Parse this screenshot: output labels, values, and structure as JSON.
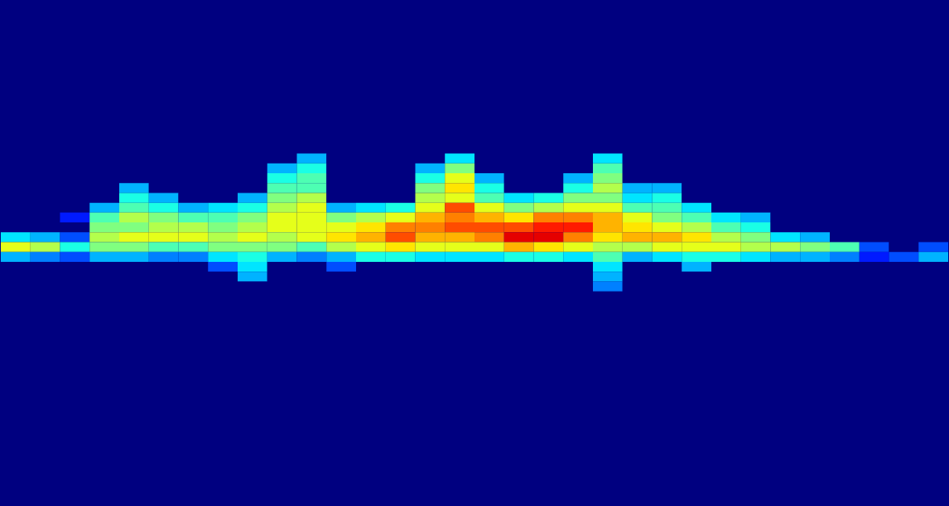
{
  "chart_data": {
    "type": "heatmap",
    "xlim": [
      0,
      10.24
    ],
    "ylim": [
      -0.1,
      10.14
    ],
    "xticks": [
      1,
      2,
      3,
      4,
      5,
      6,
      7,
      8,
      9,
      10
    ],
    "yticks": [
      1,
      2,
      3,
      4,
      5,
      6,
      7,
      8,
      9
    ],
    "tick_labels": false,
    "grid": false,
    "zlim": [
      0,
      1
    ],
    "x_bins": [
      0,
      0.32,
      0.64,
      0.96,
      1.28,
      1.6,
      1.92,
      2.24,
      2.56,
      2.88,
      3.2,
      3.52,
      3.84,
      4.16,
      4.48,
      4.8,
      5.12,
      5.44,
      5.76,
      6.08,
      6.4,
      6.72,
      7.04,
      7.36,
      7.68,
      8.0,
      8.32,
      8.64,
      8.96,
      9.28,
      9.6,
      9.92,
      10.24
    ],
    "y_bins": [
      3.0,
      3.2,
      3.4,
      3.6,
      3.8,
      4.0,
      4.2,
      4.4,
      4.6,
      4.8,
      5.0,
      5.2,
      5.4,
      5.6,
      5.8,
      6.0
    ],
    "z": [
      [
        0,
        0,
        0,
        0,
        0,
        0,
        0,
        0,
        0,
        0,
        0.3,
        0,
        0,
        0,
        0,
        0.35,
        0,
        0,
        0,
        0,
        0.35,
        0,
        0,
        0,
        0,
        0,
        0,
        0,
        0,
        0,
        0,
        0
      ],
      [
        0,
        0,
        0,
        0,
        0,
        0,
        0,
        0,
        0,
        0.3,
        0.4,
        0,
        0,
        0,
        0.3,
        0.5,
        0,
        0,
        0,
        0,
        0.45,
        0,
        0,
        0,
        0,
        0,
        0,
        0,
        0,
        0,
        0,
        0
      ],
      [
        0,
        0,
        0,
        0,
        0,
        0,
        0,
        0,
        0,
        0.4,
        0.45,
        0,
        0,
        0,
        0.4,
        0.6,
        0.3,
        0,
        0,
        0.3,
        0.5,
        0,
        0,
        0,
        0,
        0,
        0,
        0,
        0,
        0,
        0,
        0
      ],
      [
        0,
        0,
        0,
        0,
        0.3,
        0,
        0,
        0,
        0,
        0.45,
        0.45,
        0,
        0,
        0,
        0.5,
        0.65,
        0.4,
        0,
        0,
        0.4,
        0.55,
        0.3,
        0.3,
        0,
        0,
        0,
        0,
        0,
        0,
        0,
        0,
        0
      ],
      [
        0,
        0,
        0,
        0,
        0.4,
        0.3,
        0,
        0,
        0.3,
        0.5,
        0.55,
        0,
        0,
        0,
        0.55,
        0.6,
        0.45,
        0.35,
        0.4,
        0.5,
        0.5,
        0.35,
        0.4,
        0,
        0,
        0,
        0,
        0,
        0,
        0,
        0,
        0
      ],
      [
        0,
        0,
        0,
        0.3,
        0.45,
        0.4,
        0.3,
        0.35,
        0.4,
        0.55,
        0.6,
        0.3,
        0.35,
        0.4,
        0.6,
        0.8,
        0.6,
        0.5,
        0.55,
        0.6,
        0.6,
        0.45,
        0.45,
        0.35,
        0,
        0,
        0,
        0,
        0,
        0,
        0,
        0
      ],
      [
        0,
        0,
        0.15,
        0.45,
        0.55,
        0.5,
        0.45,
        0.45,
        0.5,
        0.6,
        0.6,
        0.5,
        0.55,
        0.6,
        0.7,
        0.75,
        0.7,
        0.65,
        0.75,
        0.75,
        0.7,
        0.6,
        0.5,
        0.45,
        0.35,
        0.3,
        0,
        0,
        0,
        0,
        0,
        0
      ],
      [
        0,
        0,
        0,
        0.5,
        0.5,
        0.55,
        0.55,
        0.5,
        0.55,
        0.6,
        0.6,
        0.6,
        0.65,
        0.75,
        0.75,
        0.8,
        0.8,
        0.8,
        0.85,
        0.85,
        0.7,
        0.65,
        0.6,
        0.55,
        0.45,
        0.4,
        0,
        0,
        0,
        0,
        0,
        0
      ],
      [
        0.35,
        0.3,
        0.2,
        0.55,
        0.6,
        0.6,
        0.6,
        0.55,
        0.6,
        0.55,
        0.6,
        0.65,
        0.7,
        0.8,
        0.7,
        0.7,
        0.75,
        0.9,
        0.9,
        0.75,
        0.65,
        0.7,
        0.7,
        0.65,
        0.55,
        0.5,
        0.35,
        0.3,
        0,
        0,
        0,
        0
      ],
      [
        0.6,
        0.55,
        0.4,
        0.5,
        0.5,
        0.45,
        0.45,
        0.5,
        0.5,
        0.5,
        0.45,
        0.55,
        0.6,
        0.65,
        0.6,
        0.6,
        0.6,
        0.7,
        0.65,
        0.6,
        0.55,
        0.55,
        0.6,
        0.6,
        0.6,
        0.55,
        0.55,
        0.5,
        0.45,
        0.2,
        0,
        0.2
      ],
      [
        0.3,
        0.25,
        0.2,
        0.3,
        0.3,
        0.25,
        0.25,
        0.35,
        0.4,
        0.3,
        0.25,
        0.3,
        0.4,
        0.4,
        0.35,
        0.35,
        0.35,
        0.4,
        0.4,
        0.35,
        0.45,
        0.3,
        0.35,
        0.4,
        0.4,
        0.35,
        0.3,
        0.3,
        0.25,
        0.15,
        0.2,
        0.3
      ],
      [
        0,
        0,
        0,
        0,
        0,
        0,
        0,
        0.2,
        0.35,
        0,
        0,
        0.2,
        0,
        0,
        0,
        0,
        0,
        0,
        0,
        0,
        0.35,
        0,
        0,
        0.3,
        0,
        0,
        0,
        0,
        0,
        0,
        0,
        0
      ],
      [
        0,
        0,
        0,
        0,
        0,
        0,
        0,
        0,
        0.3,
        0,
        0,
        0,
        0,
        0,
        0,
        0,
        0,
        0,
        0,
        0,
        0.3,
        0,
        0,
        0,
        0,
        0,
        0,
        0,
        0,
        0,
        0,
        0
      ],
      [
        0,
        0,
        0,
        0,
        0,
        0,
        0,
        0,
        0,
        0,
        0,
        0,
        0,
        0,
        0,
        0,
        0,
        0,
        0,
        0,
        0.25,
        0,
        0,
        0,
        0,
        0,
        0,
        0,
        0,
        0,
        0,
        0
      ],
      [
        0,
        0,
        0,
        0,
        0,
        0,
        0,
        0,
        0,
        0,
        0,
        0,
        0,
        0,
        0,
        0,
        0,
        0,
        0,
        0,
        0,
        0,
        0,
        0,
        0,
        0,
        0,
        0,
        0,
        0,
        0,
        0
      ]
    ]
  }
}
